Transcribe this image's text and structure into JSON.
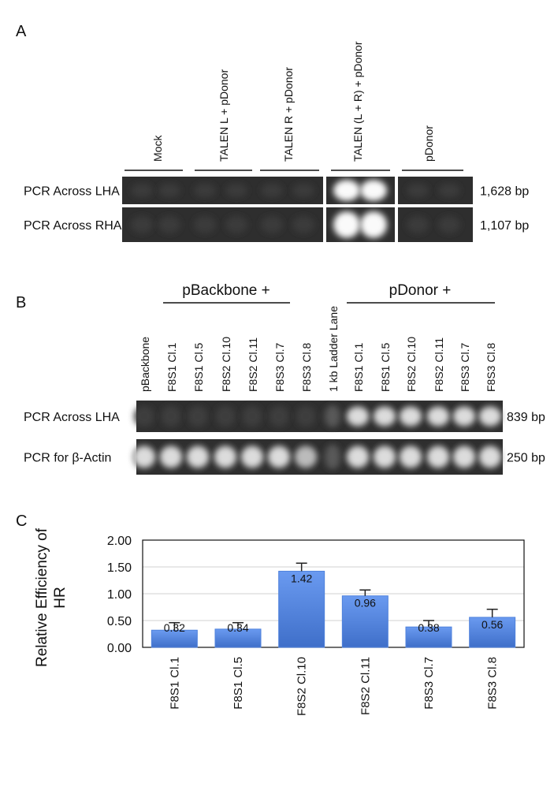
{
  "panel_a": {
    "label": "A",
    "lanes": [
      "Mock",
      "TALEN L + pDonor",
      "TALEN R + pDonor",
      "TALEN (L + R) + pDonor",
      "pDonor"
    ],
    "rows": [
      {
        "label": "PCR Across LHA",
        "size": "1,628 bp"
      },
      {
        "label": "PCR Across RHA",
        "size": "1,107 bp"
      }
    ]
  },
  "panel_b": {
    "label": "B",
    "groups": [
      "pBackbone +",
      "pDonor +"
    ],
    "lanes": [
      "pBackbone",
      "F8S1 Cl.1",
      "F8S1 Cl.5",
      "F8S2 Cl.10",
      "F8S2 Cl.11",
      "F8S3 Cl.7",
      "F8S3 Cl.8",
      "1 kb Ladder Lane",
      "F8S1 Cl.1",
      "F8S1 Cl.5",
      "F8S2 Cl.10",
      "F8S2 Cl.11",
      "F8S3 Cl.7",
      "F8S3 Cl.8"
    ],
    "rows": [
      {
        "label": "PCR Across LHA",
        "size": "839 bp"
      },
      {
        "label": "PCR for β-Actin",
        "size": "250 bp"
      }
    ]
  },
  "chart_data": {
    "type": "bar",
    "panel_label": "C",
    "y_label": "Relative Efficiency of HR",
    "categories": [
      "F8S1 Cl.1",
      "F8S1 Cl.5",
      "F8S2 Cl.10",
      "F8S2 Cl.11",
      "F8S3 Cl.7",
      "F8S3 Cl.8"
    ],
    "values": [
      0.32,
      0.34,
      1.42,
      0.96,
      0.38,
      0.56
    ],
    "errors": [
      0.14,
      0.12,
      0.15,
      0.11,
      0.12,
      0.15
    ],
    "color": "#4f82dc",
    "ylim": [
      0,
      2
    ],
    "yticks": [
      {
        "value": 0,
        "label": "0.00"
      },
      {
        "value": 0.5,
        "label": "0.50"
      },
      {
        "value": 1,
        "label": "1.00"
      },
      {
        "value": 1.5,
        "label": "1.50"
      },
      {
        "value": 2,
        "label": "2.00"
      }
    ],
    "grid": true
  }
}
